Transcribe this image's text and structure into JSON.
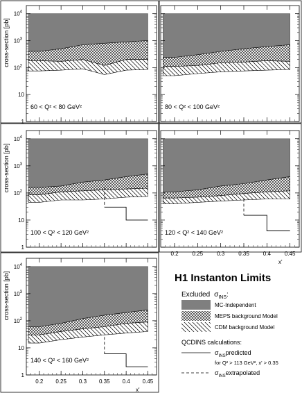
{
  "figure": {
    "title": "H1 Instanton Limits",
    "axis_ylabel": "cross-section [pb]",
    "axis_xlabel": "x'",
    "legend": {
      "excluded_prefix": "Excluded",
      "excluded_symbol": "σ",
      "excluded_sub": "INS",
      "excluded_suffix": ":",
      "entries": [
        {
          "label": "MC-Independent",
          "pattern": "solid-gray"
        },
        {
          "label": "MEPS background Model",
          "pattern": "crosshatch"
        },
        {
          "label": "CDM background Model",
          "pattern": "hatch"
        }
      ],
      "calc_heading": "QCDINS calculations:",
      "predicted_symbol": "σ",
      "predicted_sub": "INS",
      "predicted_suffix": "predicted",
      "predicted_note": "for Q² > 113 GeV², x' > 0.35",
      "extrapolated_symbol": "σ",
      "extrapolated_sub": "INS",
      "extrapolated_suffix": "extrapolated"
    },
    "colors": {
      "mc_independent": "#7f7f7f",
      "crosshatch": "#000000",
      "background": "#ffffff"
    }
  },
  "chart_data": [
    {
      "type": "area",
      "panel_label": "60 < Q² < 80 GeV²",
      "x": [
        0.175,
        0.2,
        0.25,
        0.3,
        0.35,
        0.4,
        0.45
      ],
      "mc_independent": [
        10000,
        10000,
        10000,
        10000,
        10000,
        10000,
        10000
      ],
      "meps": [
        400,
        400,
        500,
        700,
        800,
        900,
        1000
      ],
      "cdm": [
        180,
        180,
        170,
        200,
        120,
        200,
        200
      ],
      "lower": [
        75,
        75,
        80,
        90,
        55,
        80,
        85
      ],
      "qcdins_predicted": null,
      "qcdins_extrapolated": null,
      "yscale": "log",
      "ylim": [
        1,
        20000
      ],
      "xlim": [
        0.17,
        0.47
      ],
      "ytick_exponents": [
        1,
        2,
        3,
        4
      ],
      "ytick_values": [
        "1",
        "10",
        "10",
        "10",
        "10"
      ],
      "xticks": [
        "0.2",
        "0.25",
        "0.3",
        "0.35",
        "0.4",
        "0.45"
      ]
    },
    {
      "type": "area",
      "panel_label": "80 < Q² < 100 GeV²",
      "x": [
        0.175,
        0.2,
        0.25,
        0.3,
        0.35,
        0.4,
        0.45
      ],
      "mc_independent": [
        10000,
        10000,
        10000,
        10000,
        10000,
        10000,
        10000
      ],
      "meps": [
        240,
        240,
        300,
        400,
        500,
        600,
        700
      ],
      "cdm": [
        110,
        110,
        120,
        150,
        160,
        180,
        170
      ],
      "lower": [
        50,
        50,
        60,
        70,
        75,
        80,
        85
      ],
      "qcdins_predicted": null,
      "qcdins_extrapolated": null,
      "yscale": "log",
      "ylim": [
        1,
        20000
      ],
      "xlim": [
        0.17,
        0.47
      ],
      "xticks": [
        "0.2",
        "0.25",
        "0.3",
        "0.35",
        "0.4",
        "0.45"
      ]
    },
    {
      "type": "area",
      "panel_label": "100 < Q² < 120 GeV²",
      "x": [
        0.175,
        0.2,
        0.25,
        0.3,
        0.35,
        0.4,
        0.45
      ],
      "mc_independent": [
        10000,
        10000,
        10000,
        10000,
        10000,
        10000,
        10000
      ],
      "meps": [
        160,
        160,
        180,
        250,
        300,
        400,
        500
      ],
      "cdm": [
        85,
        85,
        110,
        120,
        130,
        140,
        150
      ],
      "lower": [
        45,
        45,
        55,
        55,
        60,
        70,
        75
      ],
      "qcdins_extrapolated": {
        "x": [
          0.35,
          0.35
        ],
        "y": [
          160,
          30
        ]
      },
      "qcdins_predicted": {
        "x": [
          0.35,
          0.4,
          0.4,
          0.45
        ],
        "y": [
          30,
          30,
          10,
          10
        ]
      },
      "yscale": "log",
      "ylim": [
        1,
        20000
      ],
      "xlim": [
        0.17,
        0.47
      ],
      "xticks": [
        "0.2",
        "0.25",
        "0.3",
        "0.35",
        "0.4",
        "0.45"
      ]
    },
    {
      "type": "area",
      "panel_label": "120 < Q² < 140 GeV²",
      "x": [
        0.175,
        0.2,
        0.25,
        0.3,
        0.35,
        0.4,
        0.45
      ],
      "mc_independent": [
        10000,
        10000,
        10000,
        10000,
        10000,
        10000,
        10000
      ],
      "meps": [
        110,
        110,
        130,
        180,
        220,
        300,
        400
      ],
      "cdm": [
        65,
        65,
        70,
        80,
        95,
        110,
        120
      ],
      "lower": [
        40,
        40,
        45,
        50,
        55,
        60,
        60
      ],
      "qcdins_extrapolated": {
        "x": [
          0.35,
          0.35
        ],
        "y": [
          60,
          15
        ]
      },
      "qcdins_predicted": {
        "x": [
          0.35,
          0.4,
          0.4,
          0.45
        ],
        "y": [
          15,
          15,
          4,
          4
        ]
      },
      "yscale": "log",
      "ylim": [
        1,
        20000
      ],
      "xlim": [
        0.17,
        0.47
      ],
      "xticks": [
        "0.2",
        "0.25",
        "0.3",
        "0.35",
        "0.4",
        "0.45"
      ]
    },
    {
      "type": "area",
      "panel_label": "140 < Q² < 160 GeV²",
      "x": [
        0.175,
        0.2,
        0.25,
        0.3,
        0.35,
        0.4,
        0.45
      ],
      "mc_independent": [
        10000,
        10000,
        10000,
        10000,
        10000,
        10000,
        10000
      ],
      "meps": [
        60,
        60,
        80,
        120,
        160,
        200,
        250
      ],
      "cdm": [
        30,
        30,
        40,
        50,
        60,
        80,
        90
      ],
      "lower": [
        15,
        15,
        20,
        25,
        30,
        35,
        40
      ],
      "qcdins_extrapolated": {
        "x": [
          0.35,
          0.35
        ],
        "y": [
          25,
          6
        ]
      },
      "qcdins_predicted": {
        "x": [
          0.35,
          0.4,
          0.4,
          0.45
        ],
        "y": [
          6,
          6,
          2,
          2
        ]
      },
      "yscale": "log",
      "ylim": [
        1,
        20000
      ],
      "xlim": [
        0.17,
        0.47
      ],
      "xticks": [
        "0.2",
        "0.25",
        "0.3",
        "0.35",
        "0.4",
        "0.45"
      ]
    }
  ]
}
